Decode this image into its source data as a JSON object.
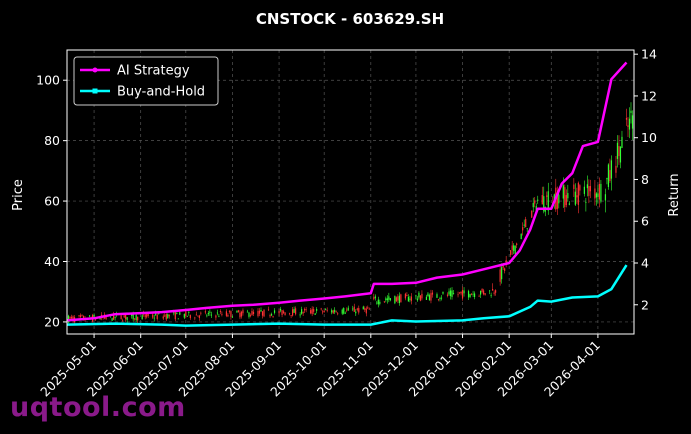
{
  "chart_data": {
    "type": "line",
    "title": "CNSTOCK - 603629.SH",
    "ylabel": "Price",
    "y2label": "Return",
    "ylim": [
      16,
      110
    ],
    "y2lim": [
      0.6,
      14.2
    ],
    "xlim": [
      "2025-04-13",
      "2026-04-25"
    ],
    "grid": true,
    "legend_position": "top-left",
    "x_ticks": [
      "2025-05-01",
      "2025-06-01",
      "2025-07-01",
      "2025-08-01",
      "2025-09-01",
      "2025-10-01",
      "2025-11-01",
      "2025-12-01",
      "2026-01-01",
      "2026-02-01",
      "2026-03-01",
      "2026-04-01"
    ],
    "y_ticks": [
      20,
      40,
      60,
      80,
      100
    ],
    "y2_ticks": [
      2,
      4,
      6,
      8,
      10,
      12,
      14
    ],
    "series": [
      {
        "name": "AI Strategy",
        "axis": "right",
        "color": "#ff00ff",
        "points": [
          [
            "2025-04-13",
            1.25
          ],
          [
            "2025-05-01",
            1.35
          ],
          [
            "2025-05-15",
            1.55
          ],
          [
            "2025-06-01",
            1.6
          ],
          [
            "2025-06-15",
            1.65
          ],
          [
            "2025-07-01",
            1.75
          ],
          [
            "2025-07-15",
            1.85
          ],
          [
            "2025-08-01",
            1.95
          ],
          [
            "2025-08-15",
            2.0
          ],
          [
            "2025-09-01",
            2.1
          ],
          [
            "2025-09-15",
            2.2
          ],
          [
            "2025-10-01",
            2.3
          ],
          [
            "2025-10-15",
            2.4
          ],
          [
            "2025-11-01",
            2.55
          ],
          [
            "2025-11-03",
            3.0
          ],
          [
            "2025-11-15",
            3.0
          ],
          [
            "2025-12-01",
            3.05
          ],
          [
            "2025-12-15",
            3.3
          ],
          [
            "2026-01-01",
            3.45
          ],
          [
            "2026-01-15",
            3.7
          ],
          [
            "2026-02-01",
            4.0
          ],
          [
            "2026-02-08",
            4.6
          ],
          [
            "2026-02-15",
            5.6
          ],
          [
            "2026-02-20",
            6.6
          ],
          [
            "2026-03-01",
            6.6
          ],
          [
            "2026-03-08",
            7.8
          ],
          [
            "2026-03-15",
            8.3
          ],
          [
            "2026-03-22",
            9.6
          ],
          [
            "2026-04-01",
            9.8
          ],
          [
            "2026-04-10",
            12.8
          ],
          [
            "2026-04-20",
            13.6
          ]
        ]
      },
      {
        "name": "Buy-and-Hold",
        "axis": "right",
        "color": "#00ffff",
        "points": [
          [
            "2025-04-13",
            1.05
          ],
          [
            "2025-05-15",
            1.1
          ],
          [
            "2025-06-15",
            1.05
          ],
          [
            "2025-07-01",
            1.0
          ],
          [
            "2025-08-01",
            1.05
          ],
          [
            "2025-09-01",
            1.1
          ],
          [
            "2025-10-01",
            1.05
          ],
          [
            "2025-11-01",
            1.05
          ],
          [
            "2025-11-15",
            1.25
          ],
          [
            "2025-12-01",
            1.2
          ],
          [
            "2026-01-01",
            1.25
          ],
          [
            "2026-01-15",
            1.35
          ],
          [
            "2026-02-01",
            1.45
          ],
          [
            "2026-02-15",
            1.9
          ],
          [
            "2026-02-20",
            2.2
          ],
          [
            "2026-03-01",
            2.15
          ],
          [
            "2026-03-15",
            2.35
          ],
          [
            "2026-04-01",
            2.4
          ],
          [
            "2026-04-10",
            2.75
          ],
          [
            "2026-04-20",
            3.9
          ]
        ]
      }
    ],
    "candles": [
      {
        "from": "2025-04-13",
        "to": "2025-10-31",
        "price_start": 21,
        "price_end": 24,
        "noise": 2.5
      },
      {
        "from": "2025-11-01",
        "to": "2026-01-20",
        "price_start": 27,
        "price_end": 30,
        "noise": 3
      },
      {
        "from": "2026-01-21",
        "to": "2026-02-20",
        "price_start": 30,
        "price_end": 60,
        "noise": 5
      },
      {
        "from": "2026-02-21",
        "to": "2026-04-05",
        "price_start": 60,
        "price_end": 64,
        "noise": 8
      },
      {
        "from": "2026-04-06",
        "to": "2026-04-24",
        "price_start": 65,
        "price_end": 88,
        "noise": 10
      }
    ],
    "candle_colors": {
      "up": "#33ff33",
      "down": "#ff3333"
    }
  },
  "watermark": "uqtool.com"
}
